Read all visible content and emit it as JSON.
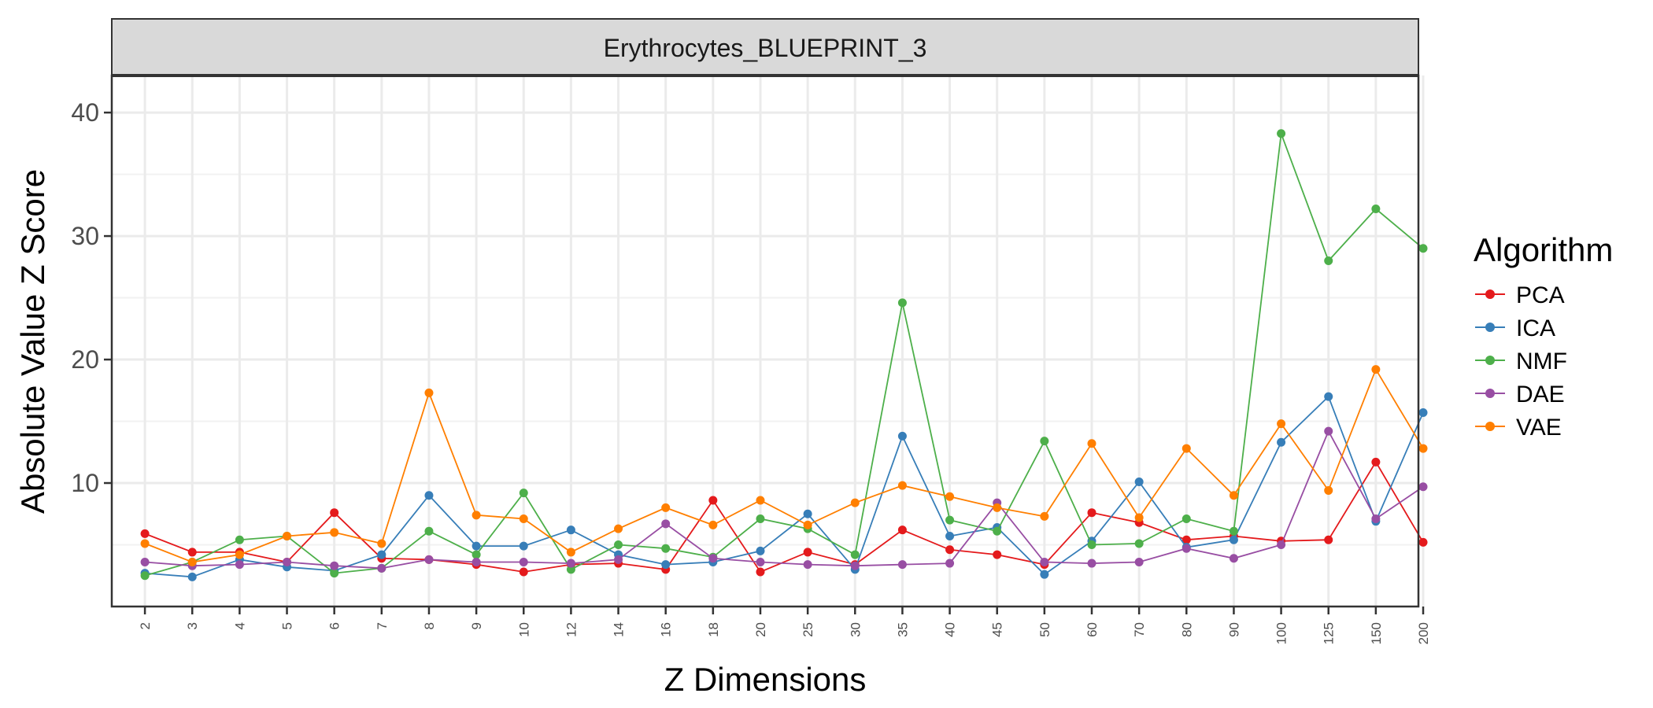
{
  "chart_data": {
    "type": "line",
    "title": "Erythrocytes_BLUEPRINT_3",
    "xlabel": "Z Dimensions",
    "ylabel": "Absolute Value Z Score",
    "categories": [
      "2",
      "3",
      "4",
      "5",
      "6",
      "7",
      "8",
      "9",
      "10",
      "12",
      "14",
      "16",
      "18",
      "20",
      "25",
      "30",
      "35",
      "40",
      "45",
      "50",
      "60",
      "70",
      "80",
      "90",
      "100",
      "125",
      "150",
      "200"
    ],
    "ylim": [
      0,
      43
    ],
    "yticks": [
      10,
      20,
      30,
      40
    ],
    "grid": true,
    "legend": {
      "title": "Algorithm",
      "position": "right"
    },
    "series": [
      {
        "name": "PCA",
        "color": "#e41a1c",
        "values": [
          5.9,
          4.4,
          4.4,
          3.6,
          7.6,
          3.9,
          3.8,
          3.4,
          2.8,
          3.4,
          3.5,
          3.0,
          8.6,
          2.8,
          4.4,
          3.4,
          6.2,
          4.6,
          4.2,
          3.4,
          7.6,
          6.8,
          5.4,
          5.7,
          5.3,
          5.4,
          11.7,
          5.2
        ]
      },
      {
        "name": "ICA",
        "color": "#377eb8",
        "values": [
          2.7,
          2.4,
          3.8,
          3.2,
          2.9,
          4.2,
          9.0,
          4.9,
          4.9,
          6.2,
          4.2,
          3.4,
          3.6,
          4.5,
          7.5,
          3.0,
          13.8,
          5.7,
          6.4,
          2.6,
          5.3,
          10.1,
          4.8,
          5.4,
          13.3,
          17.0,
          6.9,
          15.7
        ]
      },
      {
        "name": "NMF",
        "color": "#4daf4a",
        "values": [
          2.5,
          3.6,
          5.4,
          5.7,
          2.7,
          3.1,
          6.1,
          4.2,
          9.2,
          3.0,
          5.0,
          4.7,
          4.0,
          7.1,
          6.3,
          4.2,
          24.6,
          7.0,
          6.1,
          13.4,
          5.0,
          5.1,
          7.1,
          6.1,
          38.3,
          28.0,
          32.2,
          29.0
        ]
      },
      {
        "name": "DAE",
        "color": "#984ea3",
        "values": [
          3.6,
          3.3,
          3.4,
          3.6,
          3.3,
          3.1,
          3.8,
          3.6,
          3.6,
          3.5,
          3.8,
          6.7,
          3.9,
          3.6,
          3.4,
          3.3,
          3.4,
          3.5,
          8.4,
          3.6,
          3.5,
          3.6,
          4.7,
          3.9,
          5.0,
          14.2,
          7.1,
          9.7
        ]
      },
      {
        "name": "VAE",
        "color": "#ff7f00",
        "values": [
          5.1,
          3.6,
          4.2,
          5.7,
          6.0,
          5.1,
          17.3,
          7.4,
          7.1,
          4.4,
          6.3,
          8.0,
          6.6,
          8.6,
          6.6,
          8.4,
          9.8,
          8.9,
          8.0,
          7.3,
          13.2,
          7.2,
          12.8,
          9.0,
          14.8,
          9.4,
          19.2,
          12.8
        ]
      }
    ]
  }
}
